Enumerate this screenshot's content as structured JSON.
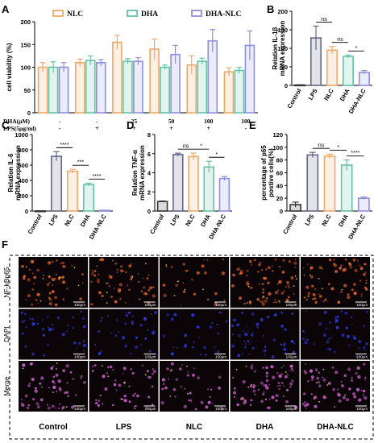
{
  "colors": {
    "NLC": "#f0a868",
    "DHA": "#66c2a5",
    "DHA-NLC": "#8f8fe0",
    "Control": "#333333",
    "LPS": "#666688",
    "micro_bg": "#0b0508",
    "nf_cell": "#e0642a",
    "dapi_cell": "#2f3ae0",
    "merge_cell": "#d060d0"
  },
  "panel_letters": [
    "A",
    "B",
    "C",
    "D",
    "E",
    "F"
  ],
  "panelA_row_labels": {
    "dha": "DHA(μM)",
    "lps": "LPS(5μg/ml)"
  },
  "panelA_dha_row": [
    "-",
    "-",
    "25",
    "50",
    "100",
    "100"
  ],
  "panelA_lps_row": [
    "-",
    "+",
    "+",
    "+",
    "+",
    "-"
  ],
  "microscopy": {
    "row_labels": [
      "NF-kBp65",
      "DAPI",
      "Merge"
    ],
    "col_labels": [
      "Control",
      "LPS",
      "NLC",
      "DHA",
      "DHA-NLC"
    ],
    "scale_label": "100μm"
  },
  "chart_data": [
    {
      "id": "A",
      "type": "bar",
      "ylabel": "cell viability (%)",
      "ylim": [
        0,
        200
      ],
      "yticks": [
        0,
        50,
        100,
        150,
        200
      ],
      "legend": "top",
      "series": [
        {
          "name": "NLC",
          "values": [
            100,
            110,
            155,
            140,
            105,
            90
          ],
          "errors": [
            10,
            8,
            15,
            22,
            20,
            9
          ]
        },
        {
          "name": "DHA",
          "values": [
            100,
            115,
            113,
            100,
            113,
            93
          ],
          "errors": [
            12,
            10,
            6,
            5,
            7,
            7
          ]
        },
        {
          "name": "DHA-NLC",
          "values": [
            100,
            110,
            113,
            128,
            158,
            148
          ],
          "errors": [
            10,
            7,
            8,
            20,
            25,
            32
          ]
        }
      ]
    },
    {
      "id": "B",
      "type": "bar",
      "ylabel": "Relation IL-1β mRNA expression",
      "ylim": [
        0,
        200
      ],
      "yticks": [
        0,
        50,
        100,
        150,
        200
      ],
      "categories": [
        "Control",
        "LPS",
        "NLC",
        "DHA",
        "DHA-NLC"
      ],
      "values": [
        1,
        128,
        95,
        78,
        35
      ],
      "errors": [
        0.5,
        32,
        10,
        4,
        5
      ],
      "significance": [
        {
          "from": 1,
          "to": 2,
          "label": "ns"
        },
        {
          "from": 2,
          "to": 3,
          "label": "ns"
        },
        {
          "from": 3,
          "to": 4,
          "label": "*"
        }
      ]
    },
    {
      "id": "C",
      "type": "bar",
      "ylabel": "Relation IL-6 mRNA expression",
      "ylim": [
        0,
        1000
      ],
      "yticks": [
        0,
        200,
        400,
        600,
        800,
        1000
      ],
      "categories": [
        "Control",
        "LPS",
        "NLC",
        "DHA",
        "DHA-NLC"
      ],
      "values": [
        1,
        715,
        520,
        345,
        8
      ],
      "errors": [
        1,
        60,
        25,
        20,
        3
      ],
      "significance": [
        {
          "from": 1,
          "to": 2,
          "label": "****"
        },
        {
          "from": 2,
          "to": 3,
          "label": "***"
        },
        {
          "from": 3,
          "to": 4,
          "label": "****"
        }
      ]
    },
    {
      "id": "D",
      "type": "bar",
      "ylabel": "Relation TNF-α mRNA expression",
      "ylim": [
        0,
        8
      ],
      "yticks": [
        0,
        2,
        4,
        6,
        8
      ],
      "categories": [
        "Control",
        "LPS",
        "NLC",
        "DHA",
        "DHA-NLC"
      ],
      "values": [
        1,
        5.9,
        5.7,
        4.6,
        3.4
      ],
      "errors": [
        0.05,
        0.15,
        0.35,
        0.6,
        0.2
      ],
      "significance": [
        {
          "from": 1,
          "to": 2,
          "label": "ns"
        },
        {
          "from": 2,
          "to": 3,
          "label": "*"
        },
        {
          "from": 3,
          "to": 4,
          "label": "*"
        }
      ]
    },
    {
      "id": "E",
      "type": "bar",
      "ylabel": "percentage of p65 postive cells(%)",
      "ylim": [
        0,
        120
      ],
      "yticks": [
        0,
        20,
        40,
        60,
        80,
        100,
        120
      ],
      "categories": [
        "Control",
        "LPS",
        "NLC",
        "DHA",
        "DHA-NLC"
      ],
      "values": [
        10,
        88,
        86,
        72,
        20
      ],
      "errors": [
        4,
        4,
        3,
        8,
        2
      ],
      "significance": [
        {
          "from": 1,
          "to": 2,
          "label": "ns"
        },
        {
          "from": 2,
          "to": 3,
          "label": "*"
        },
        {
          "from": 3,
          "to": 4,
          "label": "****"
        }
      ]
    }
  ]
}
